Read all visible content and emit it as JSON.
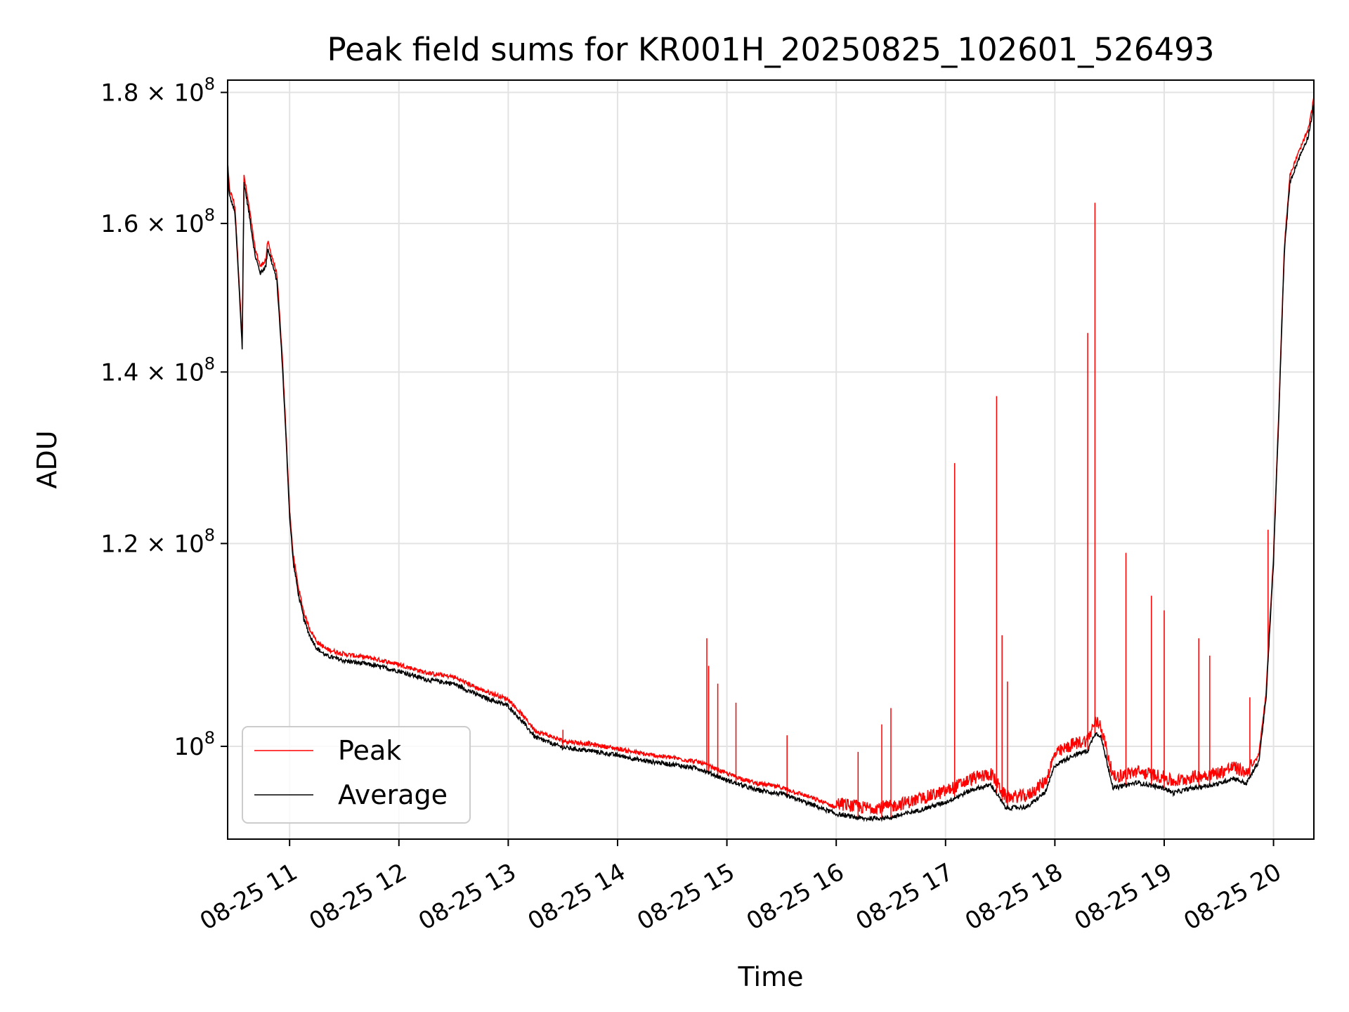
{
  "chart_data": {
    "type": "line",
    "title": "Peak field sums for KR001H_20250825_102601_526493",
    "xlabel": "Time",
    "ylabel": "ADU",
    "xlim": [
      "2025-08-25 10:26",
      "2025-08-25 20:00"
    ],
    "ylim": [
      92000000,
      182000000
    ],
    "yscale": "log",
    "grid": true,
    "legend_position": "lower-left",
    "x_ticks": [
      "08-25 11",
      "08-25 12",
      "08-25 13",
      "08-25 14",
      "08-25 15",
      "08-25 16",
      "08-25 17",
      "08-25 18",
      "08-25 19",
      "08-25 20"
    ],
    "x_tick_times": [
      "2025-08-25 11:00",
      "2025-08-25 12:00",
      "2025-08-25 13:00",
      "2025-08-25 14:00",
      "2025-08-25 15:00",
      "2025-08-25 16:00",
      "2025-08-25 17:00",
      "2025-08-25 18:00",
      "2025-08-25 19:00",
      "2025-08-25 20:00"
    ],
    "y_ticks": [
      {
        "value": 100000000,
        "mantissa": "",
        "exponent": "8"
      },
      {
        "value": 120000000,
        "mantissa": "1.2",
        "exponent": "8"
      },
      {
        "value": 140000000,
        "mantissa": "1.4",
        "exponent": "8"
      },
      {
        "value": 160000000,
        "mantissa": "1.6",
        "exponent": "8"
      },
      {
        "value": 180000000,
        "mantissa": "1.8",
        "exponent": "8"
      }
    ],
    "series": [
      {
        "name": "Average",
        "color": "#000000",
        "points": [
          [
            "2025-08-25 10:26",
            168000000
          ],
          [
            "2025-08-25 10:27",
            164000000
          ],
          [
            "2025-08-25 10:29",
            162500000
          ],
          [
            "2025-08-25 10:30",
            161500000
          ],
          [
            "2025-08-25 10:34",
            143000000
          ],
          [
            "2025-08-25 10:35",
            166000000
          ],
          [
            "2025-08-25 10:38",
            161000000
          ],
          [
            "2025-08-25 10:41",
            155500000
          ],
          [
            "2025-08-25 10:44",
            153000000
          ],
          [
            "2025-08-25 10:47",
            154000000
          ],
          [
            "2025-08-25 10:48",
            156500000
          ],
          [
            "2025-08-25 10:53",
            152000000
          ],
          [
            "2025-08-25 10:56",
            141000000
          ],
          [
            "2025-08-25 11:00",
            123000000
          ],
          [
            "2025-08-25 11:02",
            118000000
          ],
          [
            "2025-08-25 11:05",
            114500000
          ],
          [
            "2025-08-25 11:08",
            112000000
          ],
          [
            "2025-08-25 11:11",
            110500000
          ],
          [
            "2025-08-25 11:15",
            109200000
          ],
          [
            "2025-08-25 11:20",
            108500000
          ],
          [
            "2025-08-25 11:30",
            108000000
          ],
          [
            "2025-08-25 11:45",
            107600000
          ],
          [
            "2025-08-25 12:00",
            107000000
          ],
          [
            "2025-08-25 12:15",
            106200000
          ],
          [
            "2025-08-25 12:30",
            105800000
          ],
          [
            "2025-08-25 12:45",
            104600000
          ],
          [
            "2025-08-25 13:00",
            103700000
          ],
          [
            "2025-08-25 13:08",
            102200000
          ],
          [
            "2025-08-25 13:15",
            100800000
          ],
          [
            "2025-08-25 13:30",
            99900000
          ],
          [
            "2025-08-25 13:45",
            99600000
          ],
          [
            "2025-08-25 14:00",
            99200000
          ],
          [
            "2025-08-25 14:15",
            98700000
          ],
          [
            "2025-08-25 14:30",
            98400000
          ],
          [
            "2025-08-25 14:45",
            98000000
          ],
          [
            "2025-08-25 15:00",
            97000000
          ],
          [
            "2025-08-25 15:15",
            96200000
          ],
          [
            "2025-08-25 15:30",
            95800000
          ],
          [
            "2025-08-25 15:45",
            95000000
          ],
          [
            "2025-08-25 16:00",
            94100000
          ],
          [
            "2025-08-25 16:15",
            93700000
          ],
          [
            "2025-08-25 16:30",
            93800000
          ],
          [
            "2025-08-25 16:45",
            94400000
          ],
          [
            "2025-08-25 17:00",
            95100000
          ],
          [
            "2025-08-25 17:15",
            96200000
          ],
          [
            "2025-08-25 17:25",
            96600000
          ],
          [
            "2025-08-25 17:33",
            94600000
          ],
          [
            "2025-08-25 17:45",
            94700000
          ],
          [
            "2025-08-25 17:55",
            96000000
          ],
          [
            "2025-08-25 18:00",
            98300000
          ],
          [
            "2025-08-25 18:10",
            99200000
          ],
          [
            "2025-08-25 18:18",
            99600000
          ],
          [
            "2025-08-25 18:22",
            101200000
          ],
          [
            "2025-08-25 18:25",
            101000000
          ],
          [
            "2025-08-25 18:32",
            96300000
          ],
          [
            "2025-08-25 18:45",
            96800000
          ],
          [
            "2025-08-25 19:00",
            96300000
          ],
          [
            "2025-08-25 19:05",
            95900000
          ],
          [
            "2025-08-25 19:15",
            96300000
          ],
          [
            "2025-08-25 19:30",
            96700000
          ],
          [
            "2025-08-25 19:38",
            97200000
          ],
          [
            "2025-08-25 19:45",
            96700000
          ],
          [
            "2025-08-25 19:52",
            98700000
          ],
          [
            "2025-08-25 19:56",
            104500000
          ],
          [
            "2025-08-25 20:00",
            118000000
          ],
          [
            "2025-08-25 20:03",
            135000000
          ],
          [
            "2025-08-25 20:06",
            156000000
          ],
          [
            "2025-08-25 20:09",
            166000000
          ],
          [
            "2025-08-25 20:13",
            169000000
          ],
          [
            "2025-08-25 20:16",
            171000000
          ],
          [
            "2025-08-25 20:19",
            173000000
          ],
          [
            "2025-08-25 20:21",
            176000000
          ],
          [
            "2025-08-25 20:23",
            180000000
          ],
          [
            "2025-08-25 20:24",
            182000000
          ]
        ]
      },
      {
        "name": "Peak",
        "color": "#ff0000",
        "spikes": [
          [
            "2025-08-25 13:30",
            101500000
          ],
          [
            "2025-08-25 14:49",
            110200000
          ],
          [
            "2025-08-25 14:50",
            107500000
          ],
          [
            "2025-08-25 14:55",
            105800000
          ],
          [
            "2025-08-25 15:05",
            104000000
          ],
          [
            "2025-08-25 15:33",
            101000000
          ],
          [
            "2025-08-25 16:12",
            99500000
          ],
          [
            "2025-08-25 16:25",
            102000000
          ],
          [
            "2025-08-25 16:30",
            103500000
          ],
          [
            "2025-08-25 17:05",
            129000000
          ],
          [
            "2025-08-25 17:28",
            137000000
          ],
          [
            "2025-08-25 17:31",
            110500000
          ],
          [
            "2025-08-25 17:34",
            106000000
          ],
          [
            "2025-08-25 18:18",
            145000000
          ],
          [
            "2025-08-25 18:22",
            163000000
          ],
          [
            "2025-08-25 18:39",
            119000000
          ],
          [
            "2025-08-25 18:53",
            114500000
          ],
          [
            "2025-08-25 19:00",
            113000000
          ],
          [
            "2025-08-25 19:19",
            110200000
          ],
          [
            "2025-08-25 19:25",
            108500000
          ],
          [
            "2025-08-25 19:47",
            104500000
          ],
          [
            "2025-08-25 19:57",
            121500000
          ]
        ]
      }
    ]
  }
}
